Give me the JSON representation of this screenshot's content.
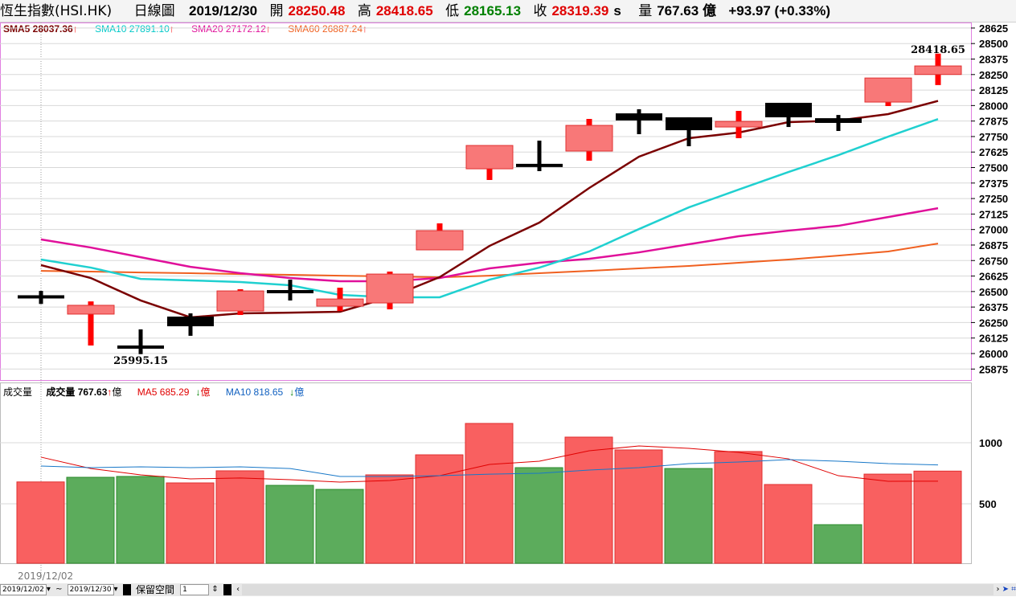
{
  "header": {
    "name": "恆生指數(HSI.HK)",
    "period": "日線圖",
    "date": "2019/12/30",
    "open_label": "開",
    "open": "28250.48",
    "high_label": "高",
    "high": "28418.65",
    "low_label": "低",
    "low": "28165.13",
    "close_label": "收",
    "close": "28319.39",
    "s": "s",
    "vol_label": "量",
    "vol": "767.63 億",
    "change": "+93.97 (+0.33%)"
  },
  "legend": [
    {
      "text": "SMA5 28037.36",
      "color": "#7a0000"
    },
    {
      "text": "SMA10 27891.10",
      "color": "#00c8c8"
    },
    {
      "text": "SMA20 27172.12",
      "color": "#e0109a"
    },
    {
      "text": "SMA60 26887.24",
      "color": "#f06020"
    }
  ],
  "vol_legend": {
    "title": "成交量",
    "vol": "成交量 767.63",
    "vol_unit": "億",
    "ma5": "MA5 685.29",
    "ma5_unit": "億",
    "ma10": "MA10 818.65",
    "ma10_unit": "億"
  },
  "annotations": {
    "max": "28418.65",
    "min": "25995.15"
  },
  "first_date": "2019/12/02",
  "footer": {
    "from": "2019/12/02",
    "tilde": "~",
    "to": "2019/12/30",
    "keep_label": "保留空間",
    "keep_value": "1",
    "page": "1"
  },
  "chart_data": {
    "type": "candlestick",
    "price_axis": {
      "min": 25875,
      "max": 28625,
      "step": 125
    },
    "volume_axis": {
      "ticks": [
        500,
        1000
      ]
    },
    "candles": [
      [
        26470,
        26505,
        26400,
        26455
      ],
      [
        26318,
        26420,
        26065,
        26389
      ],
      [
        26065,
        26195,
        25995.15,
        26050
      ],
      [
        26298,
        26324,
        26143,
        26220
      ],
      [
        26343,
        26518,
        26311,
        26505
      ],
      [
        26512,
        26596,
        26428,
        26500
      ],
      [
        26382,
        26531,
        26343,
        26440
      ],
      [
        26408,
        26661,
        26356,
        26641
      ],
      [
        26836,
        27050,
        26836,
        26991
      ],
      [
        27490,
        27678,
        27400,
        27678
      ],
      [
        27530,
        27717,
        27471,
        27520
      ],
      [
        27633,
        27892,
        27555,
        27840
      ],
      [
        27937,
        27970,
        27769,
        27880
      ],
      [
        27905,
        27905,
        27672,
        27801
      ],
      [
        27827,
        27957,
        27737,
        27872
      ],
      [
        28022,
        28022,
        27827,
        27905
      ],
      [
        27898,
        27924,
        27795,
        27860
      ],
      [
        28028,
        28222,
        27996,
        28222
      ],
      [
        28250.48,
        28418.65,
        28165.13,
        28319.39
      ]
    ],
    "sma5": [
      26713,
      26609,
      26428,
      26292,
      26324,
      26330,
      26337,
      26454,
      26616,
      26868,
      27056,
      27335,
      27588,
      27737,
      27782,
      27866,
      27879,
      27931,
      28037.36
    ],
    "sma10": [
      26758,
      26693,
      26602,
      26590,
      26577,
      26551,
      26473,
      26454,
      26454,
      26596,
      26693,
      26823,
      27004,
      27179,
      27322,
      27464,
      27600,
      27749,
      27891.1
    ],
    "sma20": [
      26920,
      26855,
      26777,
      26699,
      26648,
      26609,
      26583,
      26583,
      26609,
      26687,
      26732,
      26764,
      26816,
      26881,
      26946,
      26991,
      27030,
      27101,
      27172.12
    ],
    "sma60": [
      26667,
      26661,
      26654,
      26648,
      26641,
      26635,
      26628,
      26622,
      26615,
      26628,
      26648,
      26667,
      26687,
      26706,
      26732,
      26758,
      26790,
      26823,
      26887.24
    ],
    "volume": [
      679,
      717,
      724,
      671,
      770,
      651,
      618,
      737,
      901,
      1158,
      796,
      1046,
      941,
      789,
      928,
      658,
      329,
      743,
      767.63
    ],
    "vol_up": [
      1,
      0,
      0,
      1,
      1,
      0,
      0,
      1,
      1,
      1,
      0,
      1,
      1,
      0,
      1,
      1,
      0,
      1,
      1
    ],
    "vol_ma5": [
      882,
      789,
      737,
      704,
      711,
      697,
      678,
      691,
      730,
      822,
      849,
      934,
      974,
      954,
      921,
      868,
      730,
      684,
      685.29
    ],
    "vol_ma10": [
      809,
      796,
      803,
      796,
      803,
      789,
      724,
      724,
      730,
      743,
      750,
      776,
      796,
      829,
      842,
      862,
      849,
      829,
      818.65
    ]
  }
}
